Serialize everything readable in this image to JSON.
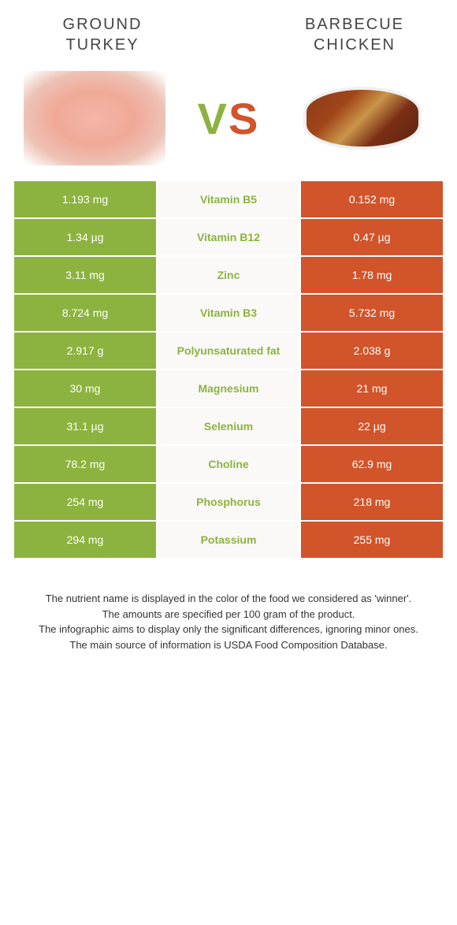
{
  "colors": {
    "left": "#8cb33f",
    "right": "#d1542a",
    "mid_bg": "#faf9f7",
    "text_light": "#ffffff"
  },
  "foods": {
    "left_title": "GROUND TURKEY",
    "right_title": "BARBECUE CHICKEN"
  },
  "vs": {
    "v": "V",
    "s": "S"
  },
  "rows": [
    {
      "nutrient": "Vitamin B5",
      "left": "1.193 mg",
      "right": "0.152 mg",
      "winner": "left"
    },
    {
      "nutrient": "Vitamin B12",
      "left": "1.34 µg",
      "right": "0.47 µg",
      "winner": "left"
    },
    {
      "nutrient": "Zinc",
      "left": "3.11 mg",
      "right": "1.78 mg",
      "winner": "left"
    },
    {
      "nutrient": "Vitamin B3",
      "left": "8.724 mg",
      "right": "5.732 mg",
      "winner": "left"
    },
    {
      "nutrient": "Polyunsaturated fat",
      "left": "2.917 g",
      "right": "2.038 g",
      "winner": "left"
    },
    {
      "nutrient": "Magnesium",
      "left": "30 mg",
      "right": "21 mg",
      "winner": "left"
    },
    {
      "nutrient": "Selenium",
      "left": "31.1 µg",
      "right": "22 µg",
      "winner": "left"
    },
    {
      "nutrient": "Choline",
      "left": "78.2 mg",
      "right": "62.9 mg",
      "winner": "left"
    },
    {
      "nutrient": "Phosphorus",
      "left": "254 mg",
      "right": "218 mg",
      "winner": "left"
    },
    {
      "nutrient": "Potassium",
      "left": "294 mg",
      "right": "255 mg",
      "winner": "left"
    }
  ],
  "footnotes": [
    "The nutrient name is displayed in the color of the food we considered as 'winner'.",
    "The amounts are specified per 100 gram of the product.",
    "The infographic aims to display only the significant differences, ignoring minor ones.",
    "The main source of information is USDA Food Composition Database."
  ]
}
